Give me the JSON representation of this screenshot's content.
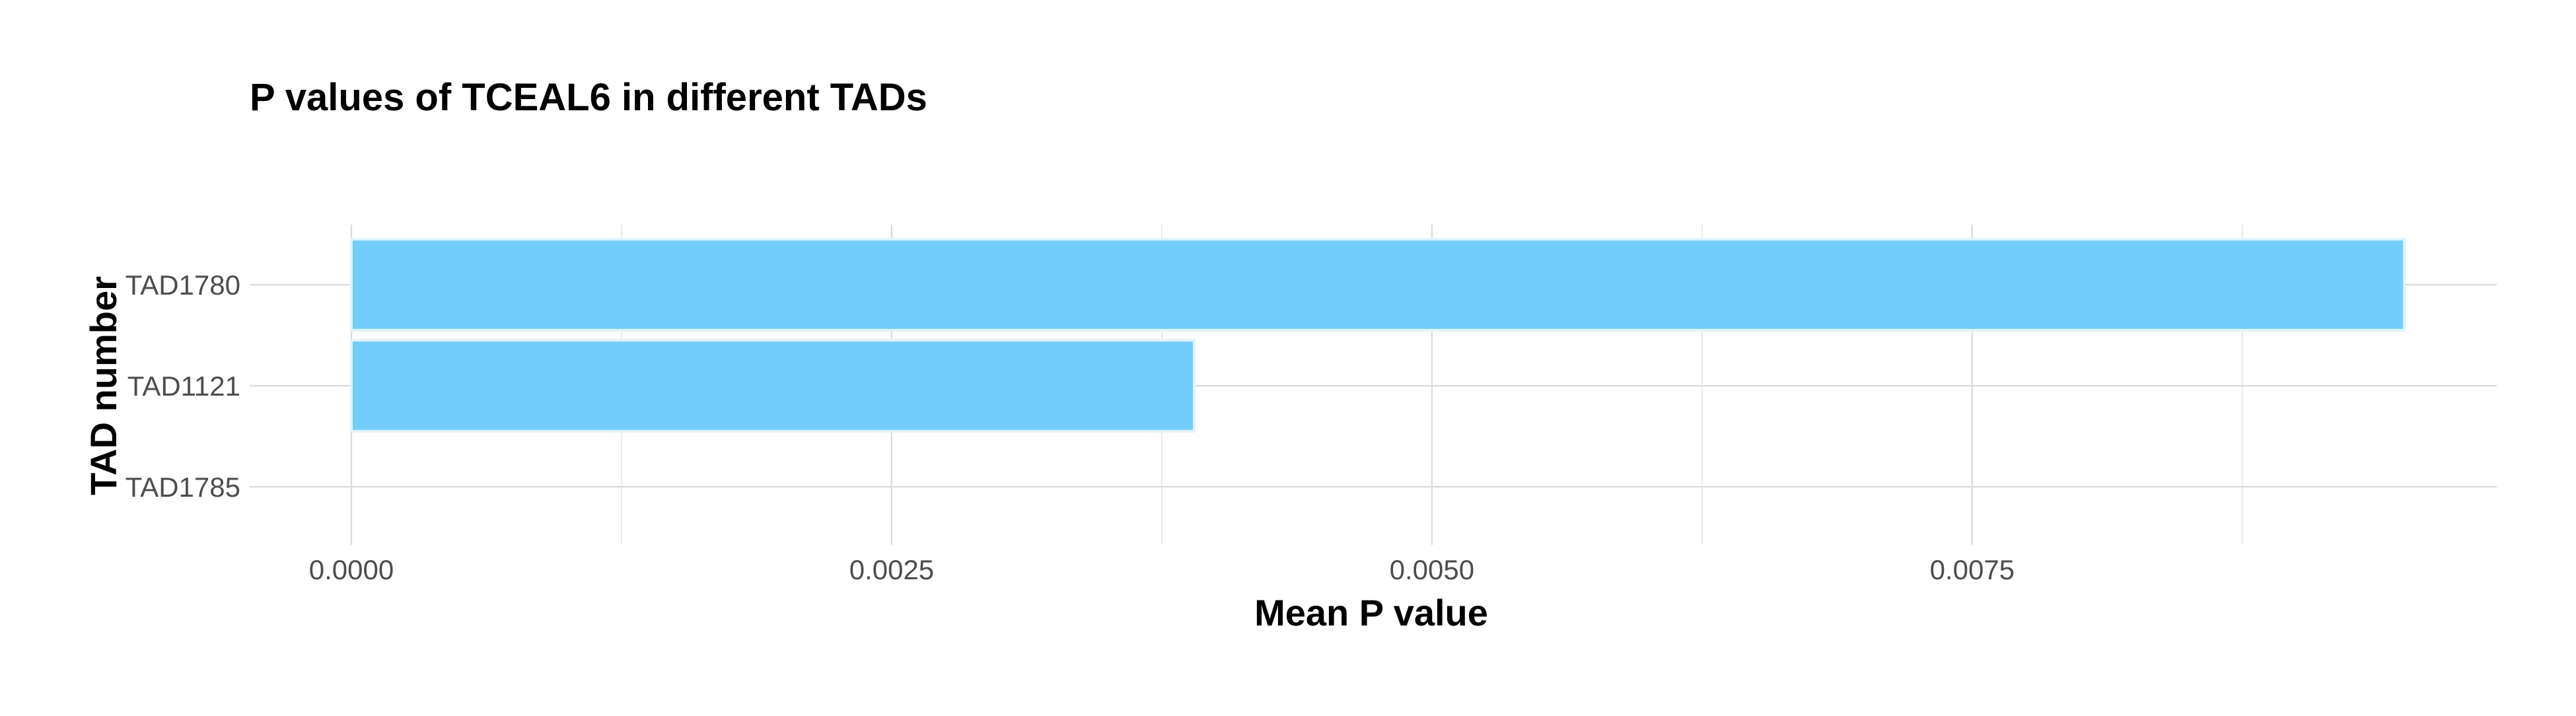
{
  "chart_data": {
    "type": "bar",
    "orientation": "horizontal",
    "title": "P values of TCEAL6 in different TADs",
    "xlabel": "Mean P value",
    "ylabel": "TAD number",
    "categories": [
      "TAD1780",
      "TAD1121",
      "TAD1785"
    ],
    "values": [
      0.0095,
      0.0039,
      0.0
    ],
    "xlim": [
      -0.0005,
      0.00995
    ],
    "xticks": [
      0.0,
      0.0025,
      0.005,
      0.0075
    ],
    "xtick_labels": [
      "0.0000",
      "0.0025",
      "0.0050",
      "0.0075"
    ],
    "grid": true,
    "legend": "none",
    "bar_color": "#74cefb",
    "bar_edge_color": "#dff2ff"
  }
}
